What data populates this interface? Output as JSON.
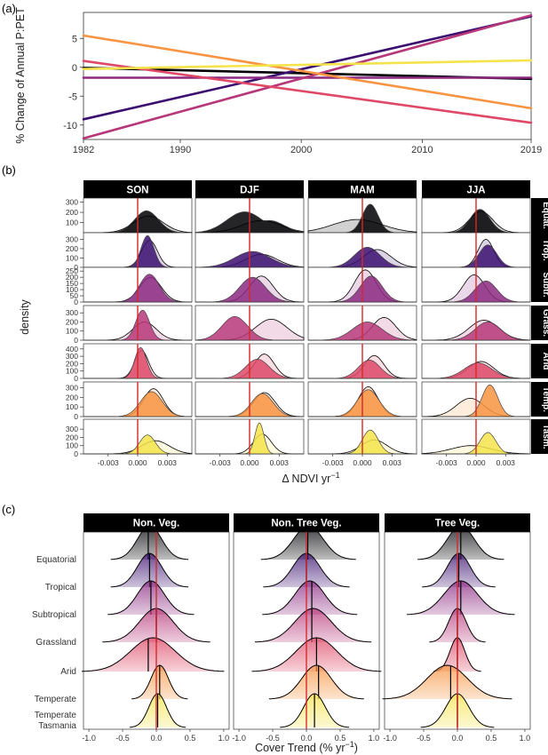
{
  "colors": {
    "Equatorial": "#000004",
    "Tropical": "#3b0f70",
    "Subtropical": "#8c2981",
    "Grassland": "#b73779",
    "Arid": "#de4968",
    "Temperate": "#f89441",
    "Tasmania": "#f5e34b",
    "zero_line": "#d62728"
  },
  "chart_data": [
    {
      "panel_label": "(a)",
      "type": "line",
      "ylabel": "% Change of Annual P:PET",
      "xlim": [
        1982,
        2019
      ],
      "ylim": [
        -12.5,
        9.5
      ],
      "x_ticks": [
        1982,
        1990,
        2000,
        2010,
        2019
      ],
      "y_ticks": [
        5,
        0,
        -5,
        -10
      ],
      "series": [
        {
          "color": "#000004",
          "x": [
            1982,
            2019
          ],
          "values": [
            -0.1,
            -2.0
          ]
        },
        {
          "color": "#3b0f70",
          "x": [
            1982,
            2019
          ],
          "values": [
            -9.0,
            8.8
          ]
        },
        {
          "color": "#8c2981",
          "x": [
            1982,
            2019
          ],
          "values": [
            -1.8,
            -1.8
          ]
        },
        {
          "color": "#b73779",
          "x": [
            1982,
            2019
          ],
          "values": [
            -12.3,
            9.0
          ]
        },
        {
          "color": "#de4968",
          "x": [
            1982,
            2019
          ],
          "values": [
            1.1,
            -9.6
          ]
        },
        {
          "color": "#f89441",
          "x": [
            1982,
            2019
          ],
          "values": [
            5.5,
            -7.1
          ]
        },
        {
          "color": "#f5e34b",
          "x": [
            1982,
            2019
          ],
          "values": [
            -0.3,
            1.2
          ]
        }
      ]
    },
    {
      "panel_label": "(b)",
      "type": "area",
      "xlabel": "Δ NDVI yr",
      "xlabel_sup": "−1",
      "ylabel": "density",
      "xlim": [
        -0.0055,
        0.0055
      ],
      "x_ticks": [
        -0.003,
        0.0,
        0.003
      ],
      "x_tick_labels": [
        "-0.003",
        "0.000",
        "0.003"
      ],
      "seasons": [
        "SON",
        "DJF",
        "MAM",
        "JJA"
      ],
      "zones": [
        {
          "strip": "Equat.",
          "color_key": "Equatorial",
          "ymax": 340,
          "y_ticks": [
            100,
            200,
            300
          ]
        },
        {
          "strip": "Trop.",
          "color_key": "Tropical",
          "ymax": 370,
          "y_ticks": [
            0,
            100,
            200,
            300
          ]
        },
        {
          "strip": "Subtr.",
          "color_key": "Subtropical",
          "ymax": 280,
          "y_ticks": [
            0,
            50,
            100,
            150,
            200,
            250
          ]
        },
        {
          "strip": "Grass.",
          "color_key": "Grassland",
          "ymax": 380,
          "y_ticks": [
            0,
            100,
            200,
            300
          ]
        },
        {
          "strip": "Arid",
          "color_key": "Arid",
          "ymax": 470,
          "y_ticks": [
            0,
            100,
            200,
            300,
            400
          ]
        },
        {
          "strip": "Temp.",
          "color_key": "Temperate",
          "ymax": 360,
          "y_ticks": [
            0,
            100,
            200,
            300
          ]
        },
        {
          "strip": "Tasm.",
          "color_key": "Tasmania",
          "ymax": 420,
          "y_ticks": [
            0,
            100,
            200,
            300,
            400
          ]
        }
      ],
      "curves": [
        [
          [
            {
              "m": 0.0009,
              "s": 0.0012,
              "p": 215
            },
            {
              "m": 0.0011,
              "s": 0.0015,
              "p": 165
            }
          ],
          [
            {
              "m": -0.0005,
              "s": 0.0018,
              "p": 205,
              "m2": 0.002,
              "s2": 0.0015,
              "p2": 120
            },
            {
              "m": 0.0012,
              "s": 0.002,
              "p": 120
            }
          ],
          [
            {
              "m": 0.0008,
              "s": 0.0008,
              "p": 280
            },
            {
              "m": -0.0005,
              "s": 0.0025,
              "p": 130
            }
          ],
          [
            {
              "m": 0.0004,
              "s": 0.001,
              "p": 230
            },
            {
              "m": 0.0005,
              "s": 0.0012,
              "p": 210
            }
          ]
        ],
        [
          [
            {
              "m": 0.001,
              "s": 0.00065,
              "p": 340
            },
            {
              "m": 0.0012,
              "s": 0.0008,
              "p": 290
            }
          ],
          [
            {
              "m": 0.0003,
              "s": 0.0018,
              "p": 170
            },
            {
              "m": 0.0012,
              "s": 0.0016,
              "p": 140
            }
          ],
          [
            {
              "m": 0.0005,
              "s": 0.0013,
              "p": 215
            },
            {
              "m": 0.0015,
              "s": 0.0014,
              "p": 190
            }
          ],
          [
            {
              "m": 0.0012,
              "s": 0.0009,
              "p": 240
            },
            {
              "m": 0.001,
              "s": 0.0008,
              "p": 300
            }
          ]
        ],
        [
          [
            {
              "m": 0.0012,
              "s": 0.001,
              "p": 225
            },
            {
              "m": 0.0013,
              "s": 0.0011,
              "p": 200
            }
          ],
          [
            {
              "m": 0.0003,
              "s": 0.0013,
              "p": 200
            },
            {
              "m": 0.0012,
              "s": 0.0012,
              "p": 210
            }
          ],
          [
            {
              "m": 0.0009,
              "s": 0.0011,
              "p": 210
            },
            {
              "m": 0.0003,
              "s": 0.0011,
              "p": 260
            }
          ],
          [
            {
              "m": 0.001,
              "s": 0.0011,
              "p": 170
            },
            {
              "m": -0.0002,
              "s": 0.0011,
              "p": 220
            }
          ]
        ],
        [
          [
            {
              "m": 0.0005,
              "s": 0.0007,
              "p": 330
            },
            {
              "m": 0.0007,
              "s": 0.0012,
              "p": 200
            }
          ],
          [
            {
              "m": -0.0015,
              "s": 0.0013,
              "p": 260
            },
            {
              "m": 0.0022,
              "s": 0.0016,
              "p": 230
            }
          ],
          [
            {
              "m": 0.0005,
              "s": 0.0015,
              "p": 200
            },
            {
              "m": 0.0022,
              "s": 0.0012,
              "p": 250
            }
          ],
          [
            {
              "m": 0.0012,
              "s": 0.0013,
              "p": 200
            },
            {
              "m": 0.0008,
              "s": 0.0015,
              "p": 220
            }
          ]
        ],
        [
          [
            {
              "m": 0.0003,
              "s": 0.0006,
              "p": 420
            },
            {
              "m": 0.0004,
              "s": 0.0007,
              "p": 380
            }
          ],
          [
            {
              "m": 0.0008,
              "s": 0.0012,
              "p": 260
            },
            {
              "m": 0.0015,
              "s": 0.001,
              "p": 330
            }
          ],
          [
            {
              "m": 0.0007,
              "s": 0.0011,
              "p": 250
            },
            {
              "m": 0.0012,
              "s": 0.001,
              "p": 310
            }
          ],
          [
            {
              "m": 0.0002,
              "s": 0.0014,
              "p": 210
            },
            {
              "m": 0.0005,
              "s": 0.0013,
              "p": 230
            }
          ]
        ],
        [
          [
            {
              "m": 0.0014,
              "s": 0.0011,
              "p": 260
            },
            {
              "m": 0.0016,
              "s": 0.001,
              "p": 290
            }
          ],
          [
            {
              "m": 0.0013,
              "s": 0.0011,
              "p": 240
            },
            {
              "m": 0.0015,
              "s": 0.0011,
              "p": 250
            }
          ],
          [
            {
              "m": 0.0006,
              "s": 0.0011,
              "p": 280
            },
            {
              "m": 0.0006,
              "s": 0.001,
              "p": 310
            }
          ],
          [
            {
              "m": 0.0014,
              "s": 0.0008,
              "p": 330
            },
            {
              "m": -0.0006,
              "s": 0.0014,
              "p": 190
            }
          ]
        ],
        [
          [
            {
              "m": 0.001,
              "s": 0.0008,
              "p": 230
            },
            {
              "m": 0.0018,
              "s": 0.0014,
              "p": 160
            }
          ],
          [
            {
              "m": 0.001,
              "s": 0.00045,
              "p": 380
            },
            {
              "m": 0.0013,
              "s": 0.0009,
              "p": 240
            }
          ],
          [
            {
              "m": 0.0008,
              "s": 0.0008,
              "p": 290
            },
            {
              "m": 0.0012,
              "s": 0.0013,
              "p": 170
            }
          ],
          [
            {
              "m": 0.0012,
              "s": 0.0008,
              "p": 260
            },
            {
              "m": -0.0005,
              "s": 0.002,
              "p": 100
            }
          ]
        ]
      ]
    },
    {
      "panel_label": "(c)",
      "type": "area",
      "xlabel": "Cover Trend (% yr",
      "xlabel_sup": "−1",
      "xlabel_close": ")",
      "xlim": [
        -1.08,
        1.08
      ],
      "x_ticks": [
        -1.0,
        -0.5,
        0.0,
        0.5,
        1.0
      ],
      "x_tick_labels": [
        "-1.0",
        "-0.5",
        "0.0",
        "0.5",
        "1.0"
      ],
      "facets": [
        "Non. Veg.",
        "Non. Tree Veg.",
        "Tree Veg."
      ],
      "rows": [
        {
          "label": "Equatorial",
          "label2": "",
          "color_key": "Equatorial"
        },
        {
          "label": "Tropical",
          "label2": "",
          "color_key": "Tropical"
        },
        {
          "label": "Subtropical",
          "label2": "",
          "color_key": "Subtropical"
        },
        {
          "label": "Grassland",
          "label2": "",
          "color_key": "Grassland"
        },
        {
          "label": "Arid",
          "label2": "",
          "color_key": "Arid"
        },
        {
          "label": "Temperate",
          "label2": "",
          "color_key": "Temperate"
        },
        {
          "label": "Temperate",
          "label2": "Tasmania",
          "color_key": "Tasmania"
        }
      ],
      "ridges": [
        [
          {
            "m": -0.1,
            "s": 0.18,
            "q": -0.12
          },
          {
            "m": -0.1,
            "s": 0.18,
            "q": -0.1
          },
          {
            "m": -0.08,
            "s": 0.2,
            "q": -0.08
          },
          {
            "m": 0.0,
            "s": 0.25,
            "q": 0.0
          },
          {
            "m": -0.05,
            "s": 0.33,
            "q": -0.12
          },
          {
            "m": 0.05,
            "s": 0.13,
            "q": 0.05
          },
          {
            "m": 0.02,
            "s": 0.13,
            "q": 0.02
          }
        ],
        [
          {
            "m": 0.03,
            "s": 0.22,
            "q": 0.02
          },
          {
            "m": 0.0,
            "s": 0.2,
            "q": 0.0
          },
          {
            "m": 0.05,
            "s": 0.22,
            "q": 0.08
          },
          {
            "m": 0.1,
            "s": 0.27,
            "q": 0.08
          },
          {
            "m": 0.15,
            "s": 0.3,
            "q": 0.15
          },
          {
            "m": 0.15,
            "s": 0.22,
            "q": 0.18
          },
          {
            "m": 0.12,
            "s": 0.16,
            "q": 0.12
          }
        ],
        [
          {
            "m": 0.05,
            "s": 0.2,
            "q": 0.05
          },
          {
            "m": 0.02,
            "s": 0.17,
            "q": 0.02
          },
          {
            "m": 0.05,
            "s": 0.25,
            "q": 0.05
          },
          {
            "m": 0.0,
            "s": 0.13,
            "q": 0.0
          },
          {
            "m": 0.0,
            "s": 0.11,
            "q": 0.0
          },
          {
            "m": -0.15,
            "s": 0.3,
            "q": -0.1
          },
          {
            "m": 0.0,
            "s": 0.17,
            "q": 0.0
          }
        ]
      ]
    }
  ]
}
